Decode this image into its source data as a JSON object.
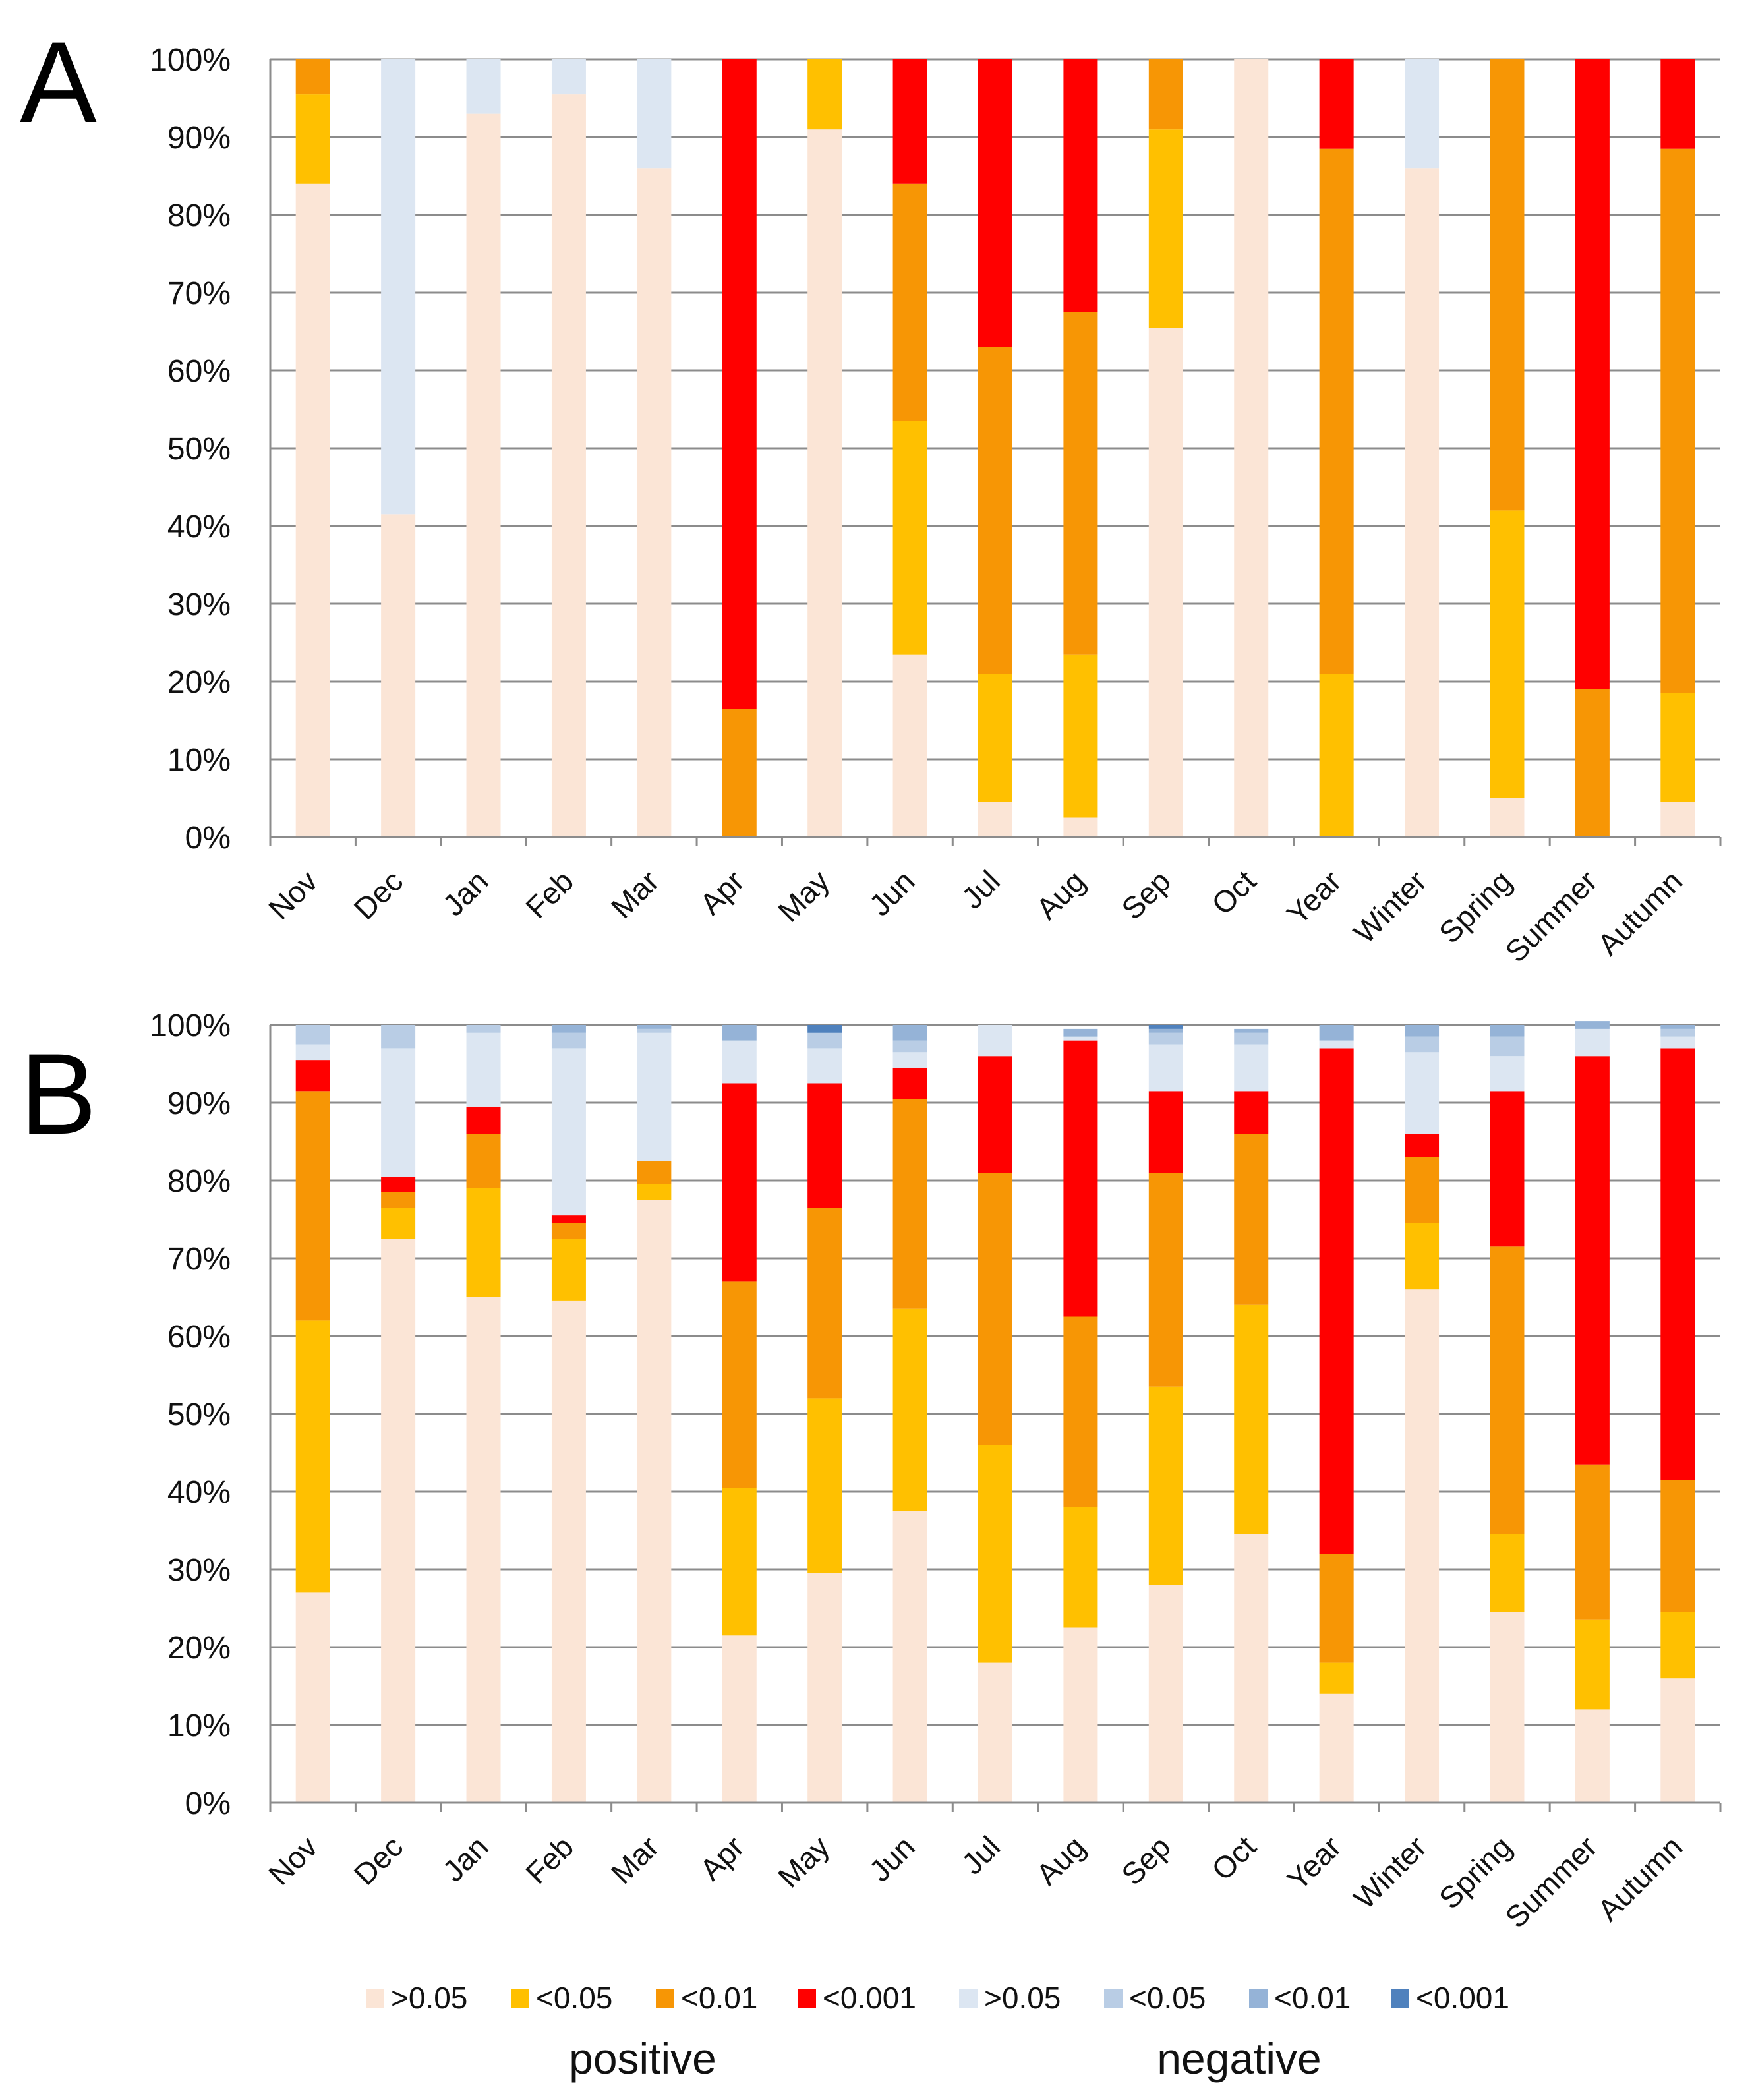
{
  "chart_data": [
    {
      "type": "bar",
      "stacked": true,
      "panel_label": "A",
      "categories": [
        "Nov",
        "Dec",
        "Jan",
        "Feb",
        "Mar",
        "Apr",
        "May",
        "Jun",
        "Jul",
        "Aug",
        "Sep",
        "Oct",
        "Year",
        "Winter",
        "Spring",
        "Summer",
        "Autumn"
      ],
      "yticks": [
        "0%",
        "10%",
        "20%",
        "30%",
        "40%",
        "50%",
        "60%",
        "70%",
        "80%",
        "90%",
        "100%"
      ],
      "ylim": [
        0,
        100
      ],
      "grid": true,
      "series": [
        {
          "name": "positive >0.05",
          "color": "#fbe5d6",
          "values": [
            84,
            41.5,
            93,
            95.5,
            86,
            0,
            91,
            23.5,
            4.5,
            2.5,
            65.5,
            100,
            0,
            86,
            5,
            0,
            4.5
          ]
        },
        {
          "name": "positive <0.05",
          "color": "#ffc000",
          "values": [
            11.5,
            0,
            0,
            0,
            0,
            0,
            9,
            30,
            16.5,
            21,
            25.5,
            0,
            21,
            0,
            37,
            0,
            14
          ]
        },
        {
          "name": "positive <0.01",
          "color": "#f79605",
          "values": [
            4.5,
            0,
            0,
            0,
            0,
            16.5,
            0,
            30.5,
            42,
            44,
            9,
            0,
            67.5,
            0,
            58,
            19,
            70
          ]
        },
        {
          "name": "positive <0.001",
          "color": "#ff0000",
          "values": [
            0,
            0,
            0,
            0,
            0,
            83.5,
            0,
            16,
            37,
            32.5,
            0,
            0,
            11.5,
            0,
            0,
            81,
            11.5
          ]
        },
        {
          "name": "negative >0.05",
          "color": "#dce6f2",
          "values": [
            0,
            58.5,
            7,
            4.5,
            14,
            0,
            0,
            0,
            0,
            0,
            0,
            0,
            0,
            14,
            0,
            0,
            0
          ]
        },
        {
          "name": "negative <0.05",
          "color": "#b9cde5",
          "values": [
            0,
            0,
            0,
            0,
            0,
            0,
            0,
            0,
            0,
            0,
            0,
            0,
            0,
            0,
            0,
            0,
            0
          ]
        },
        {
          "name": "negative <0.01",
          "color": "#95b3d7",
          "values": [
            0,
            0,
            0,
            0,
            0,
            0,
            0,
            0,
            0,
            0,
            0,
            0,
            0,
            0,
            0,
            0,
            0
          ]
        },
        {
          "name": "negative <0.001",
          "color": "#4f81bd",
          "values": [
            0,
            0,
            0,
            0,
            0,
            0,
            0,
            0,
            0,
            0,
            0,
            0,
            0,
            0,
            0,
            0,
            0
          ]
        }
      ]
    },
    {
      "type": "bar",
      "stacked": true,
      "panel_label": "B",
      "categories": [
        "Nov",
        "Dec",
        "Jan",
        "Feb",
        "Mar",
        "Apr",
        "May",
        "Jun",
        "Jul",
        "Aug",
        "Sep",
        "Oct",
        "Year",
        "Winter",
        "Spring",
        "Summer",
        "Autumn"
      ],
      "yticks": [
        "0%",
        "10%",
        "20%",
        "30%",
        "40%",
        "50%",
        "60%",
        "70%",
        "80%",
        "90%",
        "100%"
      ],
      "ylim": [
        0,
        100
      ],
      "grid": true,
      "series": [
        {
          "name": "positive >0.05",
          "color": "#fbe5d6",
          "values": [
            27,
            72.5,
            65,
            64.5,
            77.5,
            21.5,
            29.5,
            37.5,
            18,
            22.5,
            28,
            34.5,
            14,
            66,
            24.5,
            12,
            16
          ]
        },
        {
          "name": "positive <0.05",
          "color": "#ffc000",
          "values": [
            35,
            4,
            14,
            8,
            2,
            19,
            22.5,
            26,
            28,
            15.5,
            25.5,
            29.5,
            4,
            8.5,
            10,
            11.5,
            8.5
          ]
        },
        {
          "name": "positive <0.01",
          "color": "#f79605",
          "values": [
            29.5,
            2,
            7,
            2,
            3,
            26.5,
            24.5,
            27,
            35,
            24.5,
            27.5,
            22,
            14,
            8.5,
            37,
            20,
            17
          ]
        },
        {
          "name": "positive <0.001",
          "color": "#ff0000",
          "values": [
            4,
            2,
            3.5,
            1,
            0,
            25.5,
            16,
            4,
            15,
            35.5,
            10.5,
            5.5,
            65,
            3,
            20,
            52.5,
            55.5
          ]
        },
        {
          "name": "negative >0.05",
          "color": "#dce6f2",
          "values": [
            2,
            16.5,
            9.5,
            21.5,
            16.5,
            5.5,
            4.5,
            2,
            4,
            0.5,
            6,
            6,
            1,
            10.5,
            4.5,
            3.5,
            1.5
          ]
        },
        {
          "name": "negative <0.05",
          "color": "#b9cde5",
          "values": [
            2.5,
            3,
            1,
            2,
            0.5,
            0,
            2,
            1.5,
            0,
            0,
            1.5,
            1.5,
            0,
            2,
            2.5,
            0,
            1
          ]
        },
        {
          "name": "negative <0.01",
          "color": "#95b3d7",
          "values": [
            0,
            0,
            0,
            1,
            0.5,
            2,
            0,
            2,
            0,
            1,
            0.5,
            0.5,
            2,
            1.5,
            1.5,
            1,
            0.5
          ]
        },
        {
          "name": "negative <0.001",
          "color": "#4f81bd",
          "values": [
            0,
            0,
            0,
            0,
            0,
            0,
            1,
            0,
            0,
            0,
            0.5,
            0,
            0,
            0,
            0,
            0,
            0
          ]
        }
      ]
    }
  ],
  "legend": {
    "items": [
      {
        "label": ">0.05",
        "color": "#fbe5d6"
      },
      {
        "label": "<0.05",
        "color": "#ffc000"
      },
      {
        "label": "<0.01",
        "color": "#f79605"
      },
      {
        "label": "<0.001",
        "color": "#ff0000"
      },
      {
        "label": ">0.05",
        "color": "#dce6f2"
      },
      {
        "label": "<0.05",
        "color": "#b9cde5"
      },
      {
        "label": "<0.01",
        "color": "#95b3d7"
      },
      {
        "label": "<0.001",
        "color": "#4f81bd"
      }
    ],
    "group_positive": "positive",
    "group_negative": "negative"
  }
}
